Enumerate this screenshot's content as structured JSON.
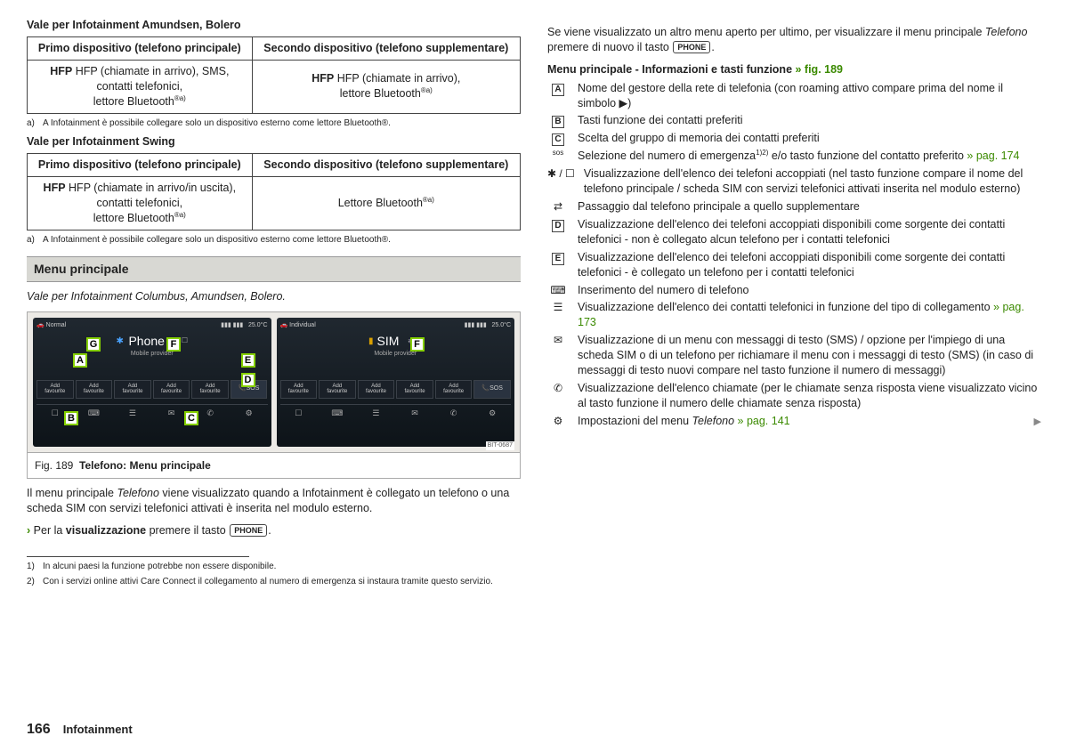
{
  "left": {
    "h1": "Vale per Infotainment Amundsen, Bolero",
    "t1": {
      "hA": "Primo dispositivo (telefono principale)",
      "hB": "Secondo dispositivo (telefono supplementare)",
      "cA1": "HFP (chiamate in arrivo), SMS,",
      "cA2": "contatti telefonici,",
      "cA3_pre": "lettore Bluetooth",
      "cB1": "HFP (chiamate in arrivo),",
      "cB2_pre": "lettore Bluetooth"
    },
    "fn_a_marker": "a)",
    "fn_a_text": "A Infotainment è possibile collegare solo un dispositivo esterno come lettore Bluetooth®.",
    "h2": "Vale per Infotainment Swing",
    "t2": {
      "cA1": "HFP (chiamate in arrivo/in uscita),",
      "cA2": "contatti telefonici,",
      "cA3_pre": "lettore Bluetooth",
      "cB_pre": "Lettore Bluetooth"
    },
    "section": "Menu principale",
    "sub_it": "Vale per Infotainment Columbus, Amundsen, Bolero.",
    "fig": {
      "num": "Fig. 189",
      "title": "Telefono: Menu principale",
      "bit": "BIT-0687",
      "s1_status_l": "Normal",
      "s1_status_r": "25.0°C",
      "s1_title": "Phone",
      "s1_sub": "Mobile provider",
      "s2_status_l": "Individual",
      "s2_status_r": "25.0°C",
      "s2_title": "SIM",
      "s2_sub": "Mobile provider",
      "fav": "Add favourite",
      "sos": "SOS"
    },
    "p1a": "Il menu principale ",
    "p1b": "Telefono",
    "p1c": " viene visualizzato quando a Infotainment è collegato un telefono o una scheda SIM con servizi telefonici attivati è inserita nel modulo esterno.",
    "p2a": "Per la ",
    "p2b": "visualizzazione",
    "p2c": " premere il tasto ",
    "phone_key": "PHONE",
    "fn1_marker": "1)",
    "fn1_text": "In alcuni paesi la funzione potrebbe non essere disponibile.",
    "fn2_marker": "2)",
    "fn2_text": "Con i servizi online attivi Care Connect il collegamento al numero di emergenza si instaura tramite questo servizio."
  },
  "right": {
    "p1a": "Se viene visualizzato un altro menu aperto per ultimo, per visualizzare il menu principale ",
    "p1b": "Telefono",
    "p1c": " premere di nuovo il tasto ",
    "head_a": "Menu principale - Informazioni e tasti funzione ",
    "head_b": "» fig. 189",
    "items": [
      {
        "icon": "A",
        "box": true,
        "text": "Nome del gestore della rete di telefonia (con roaming attivo compare prima del nome il simbolo ▶)"
      },
      {
        "icon": "B",
        "box": true,
        "text": "Tasti funzione dei contatti preferiti"
      },
      {
        "icon": "C",
        "box": true,
        "text": "Scelta del gruppo di memoria dei contatti preferiti"
      },
      {
        "icon": "sos",
        "box": false,
        "text_a": "Selezione del numero di emergenza",
        "sup": "1)2)",
        "text_b": " e/o tasto funzione del contatto preferito ",
        "link": "» pag. 174"
      },
      {
        "icon": "✱ / ☐",
        "box": false,
        "text": "Visualizzazione dell'elenco dei telefoni accoppiati (nel tasto funzione compare il nome del telefono principale / scheda SIM con servizi telefonici attivati inserita nel modulo esterno)"
      },
      {
        "icon": "⇄",
        "box": false,
        "text": "Passaggio dal telefono principale a quello supplementare"
      },
      {
        "icon": "D",
        "box": true,
        "text": "Visualizzazione dell'elenco dei telefoni accoppiati disponibili come sorgente dei contatti telefonici - non è collegato alcun telefono per i contatti telefonici"
      },
      {
        "icon": "E",
        "box": true,
        "text": "Visualizzazione dell'elenco dei telefoni accoppiati disponibili come sorgente dei contatti telefonici - è collegato un telefono per i contatti telefonici"
      },
      {
        "icon": "⌨",
        "box": false,
        "text": "Inserimento del numero di telefono"
      },
      {
        "icon": "☰",
        "box": false,
        "text_a": "Visualizzazione dell'elenco dei contatti telefonici in funzione del tipo di collegamento ",
        "link": "» pag. 173"
      },
      {
        "icon": "✉",
        "box": false,
        "text": "Visualizzazione di un menu con messaggi di testo (SMS) / opzione per l'impiego di una scheda SIM o di un telefono per richiamare il menu con i messaggi di testo (SMS) (in caso di messaggi di testo nuovi compare nel tasto funzione il numero di messaggi)"
      },
      {
        "icon": "✆",
        "box": false,
        "text": "Visualizzazione dell'elenco chiamate (per le chiamate senza risposta viene visualizzato vicino al tasto funzione il numero delle chiamate senza risposta)"
      },
      {
        "icon": "⚙",
        "box": false,
        "text_a": "Impostazioni del menu ",
        "it": "Telefono ",
        "link": "» pag. 141",
        "triangle": true
      }
    ]
  },
  "footer": {
    "page": "166",
    "section": "Infotainment"
  }
}
